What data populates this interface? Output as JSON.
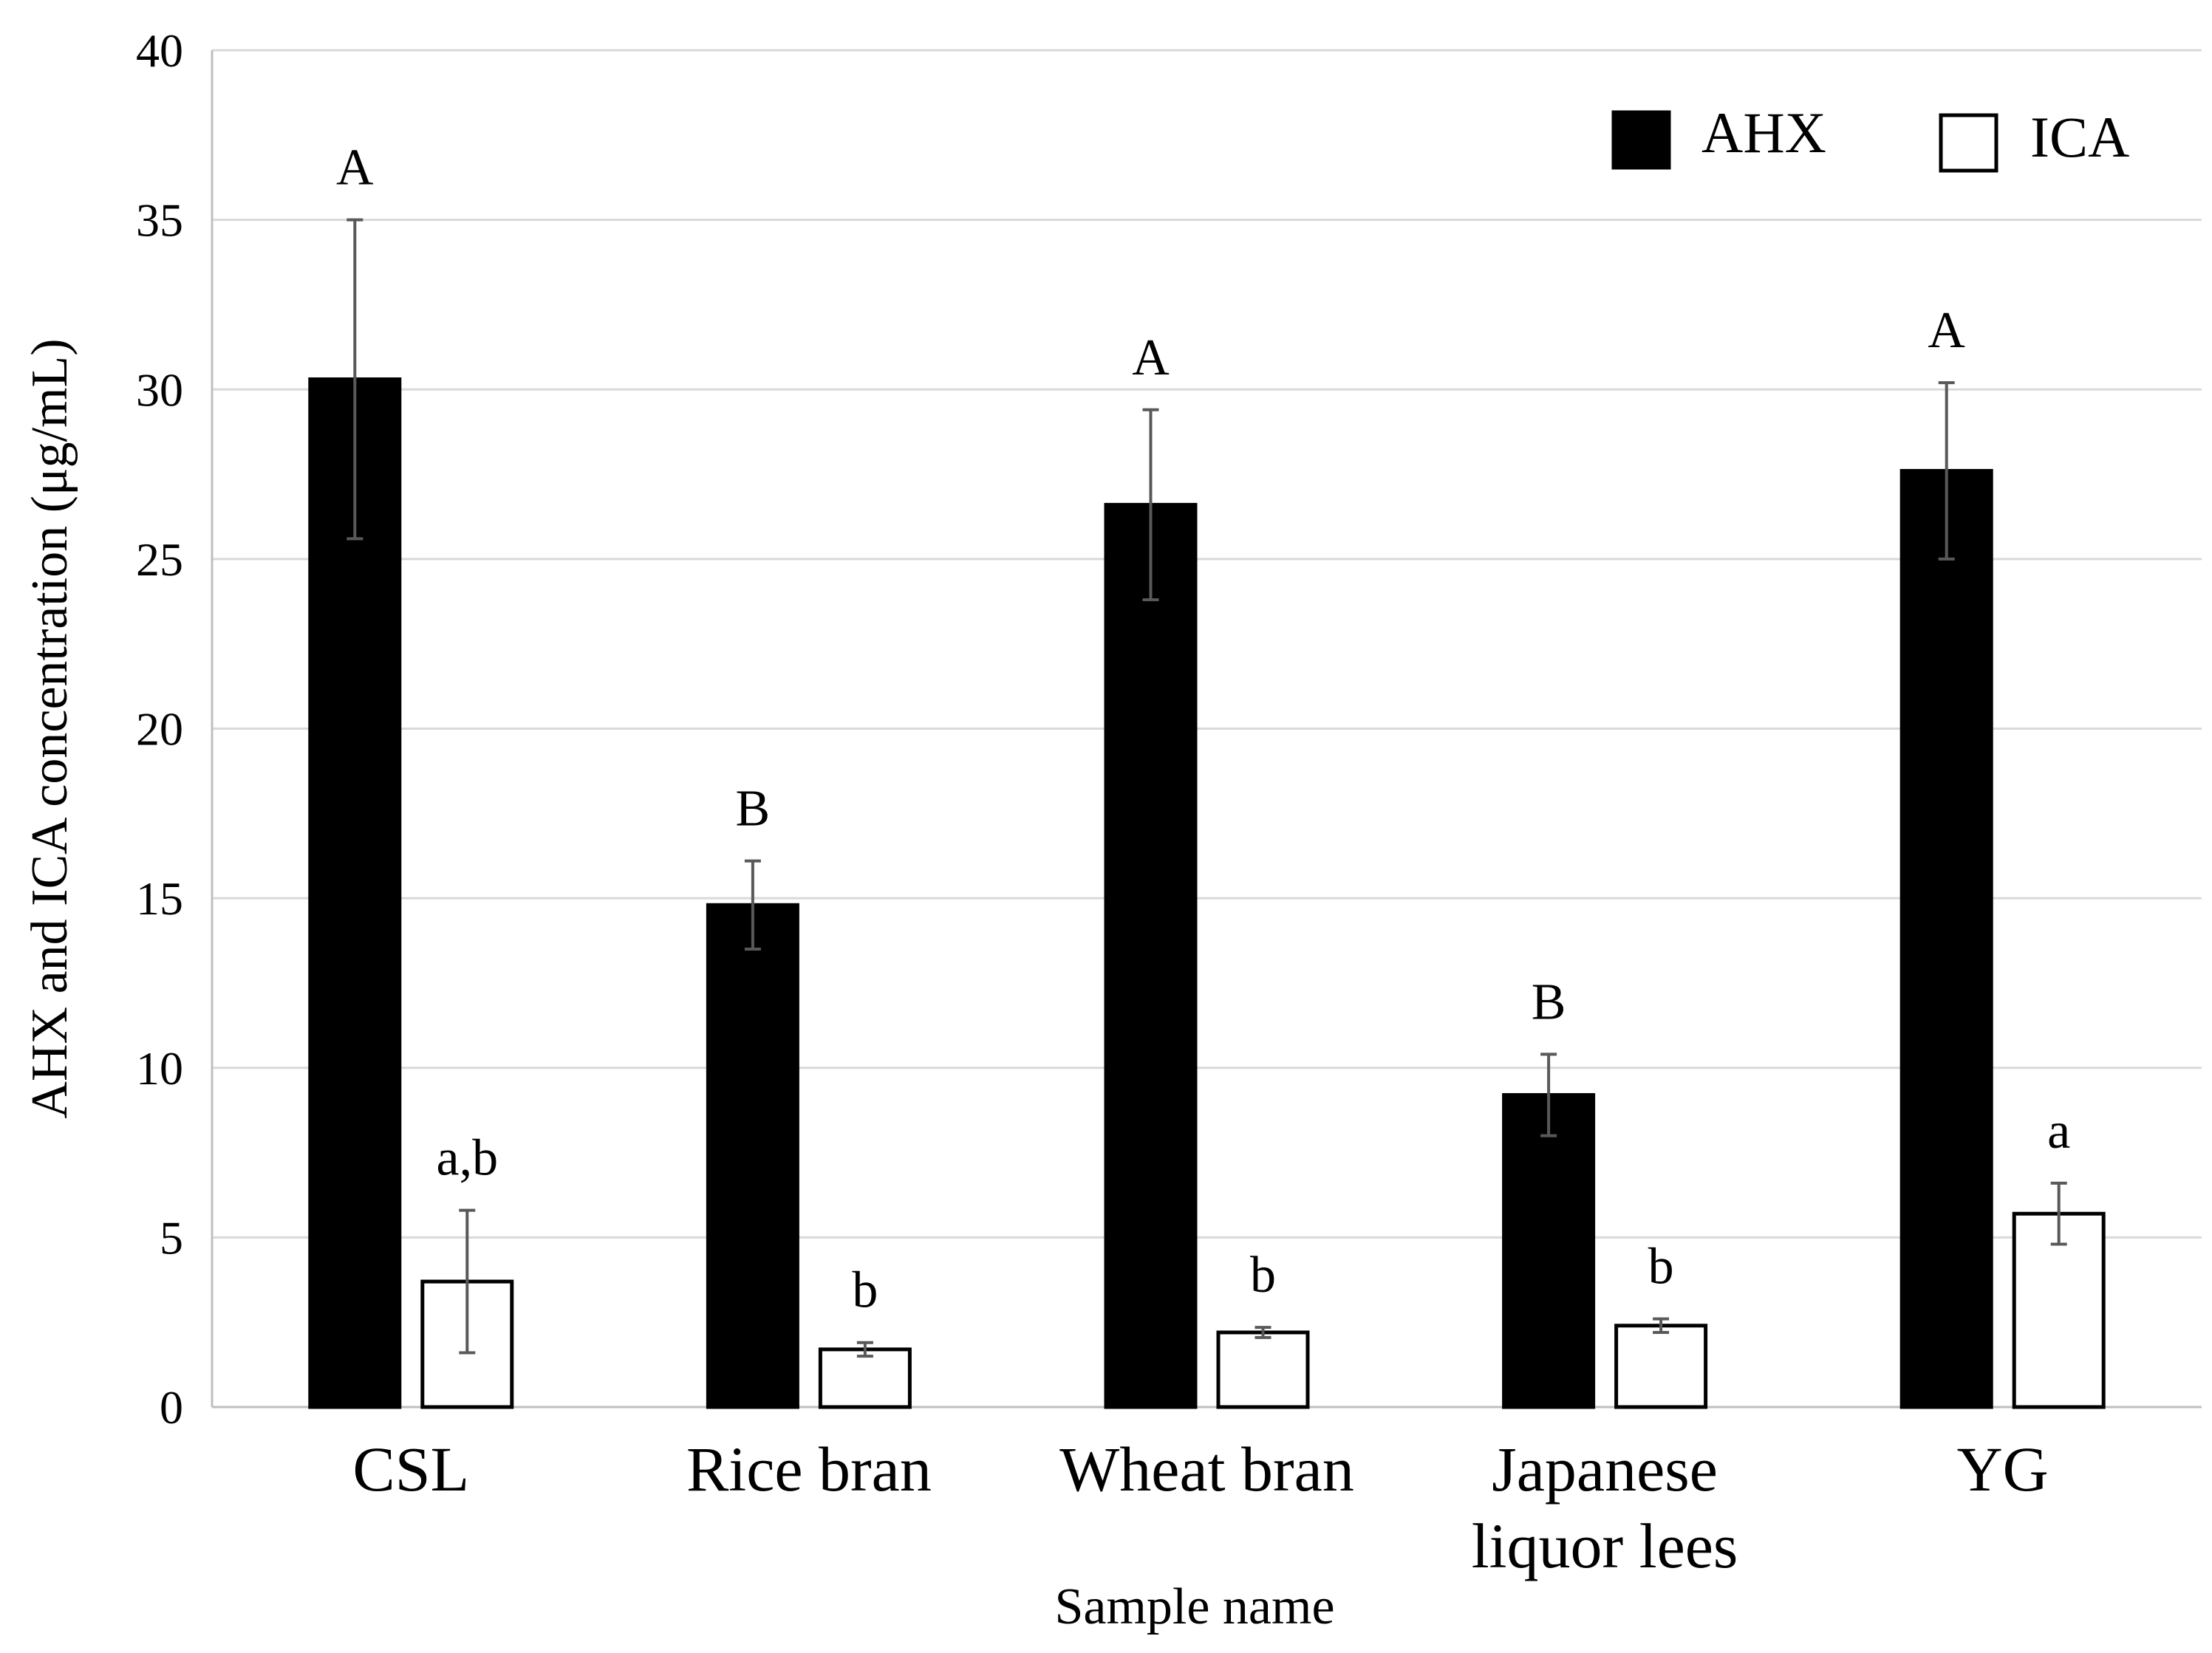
{
  "chart_data": {
    "type": "bar",
    "title": "",
    "xlabel": "Sample name",
    "ylabel": "AHX and ICA concentration (μg/mL)",
    "ylim": [
      0,
      40
    ],
    "yticks": [
      "0",
      "5",
      "10",
      "15",
      "20",
      "25",
      "30",
      "35",
      "40"
    ],
    "grid": true,
    "legend_position": "top-right",
    "categories": [
      {
        "lines": [
          "CSL"
        ]
      },
      {
        "lines": [
          "Rice bran"
        ]
      },
      {
        "lines": [
          "Wheat bran"
        ]
      },
      {
        "lines": [
          "Japanese",
          "liquor lees"
        ]
      },
      {
        "lines": [
          "YG"
        ]
      }
    ],
    "series": [
      {
        "name": "AHX",
        "fill": "#000000",
        "stroke": "#000000",
        "values": [
          30.3,
          14.8,
          26.6,
          9.2,
          27.6
        ],
        "errors": [
          4.7,
          1.3,
          2.8,
          1.2,
          2.6
        ],
        "labels": [
          "A",
          "B",
          "A",
          "B",
          "A"
        ]
      },
      {
        "name": "ICA",
        "fill": "#ffffff",
        "stroke": "#000000",
        "values": [
          3.7,
          1.7,
          2.2,
          2.4,
          5.7
        ],
        "errors": [
          2.1,
          0.2,
          0.15,
          0.2,
          0.9
        ],
        "labels": [
          "a,b",
          "b",
          "b",
          "b",
          "a"
        ]
      }
    ],
    "colors": {
      "grid": "#d9d9d9",
      "axis": "#bfbfbf",
      "error_bar": "#595959"
    }
  }
}
